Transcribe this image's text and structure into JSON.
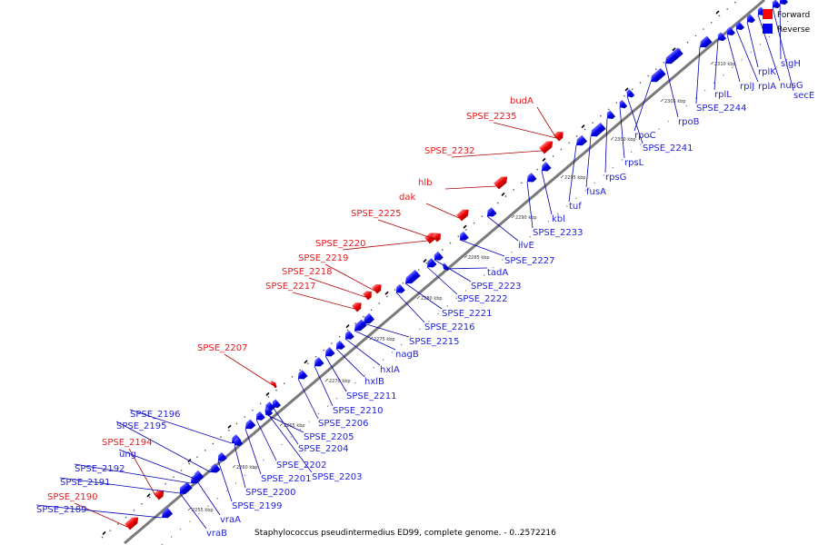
{
  "legend": {
    "forward_label": "Forward",
    "reverse_label": "Reverse",
    "forward_color": "#ff0000",
    "reverse_color": "#0000ff"
  },
  "caption": "Staphylococcus pseudintermedius ED99, complete genome. - 0..2572216",
  "ticks": [
    "2255 kbp",
    "2260 kbp",
    "2265 kbp",
    "2270 kbp",
    "2275 kbp",
    "2280 kbp",
    "2285 kbp",
    "2290 kbp",
    "2295 kbp",
    "2300 kbp",
    "2305 kbp",
    "2310 kbp"
  ],
  "forward_genes": [
    {
      "name": "SPSE_2190"
    },
    {
      "name": "SPSE_2194"
    },
    {
      "name": "SPSE_2207"
    },
    {
      "name": "SPSE_2217"
    },
    {
      "name": "SPSE_2218"
    },
    {
      "name": "SPSE_2219"
    },
    {
      "name": "SPSE_2220"
    },
    {
      "name": "SPSE_2225"
    },
    {
      "name": "dak"
    },
    {
      "name": "hlb"
    },
    {
      "name": "SPSE_2232"
    },
    {
      "name": "SPSE_2235"
    },
    {
      "name": "budA"
    }
  ],
  "reverse_genes": [
    {
      "name": "SPSE_2189"
    },
    {
      "name": "SPSE_2191"
    },
    {
      "name": "SPSE_2192"
    },
    {
      "name": "ung"
    },
    {
      "name": "SPSE_2195"
    },
    {
      "name": "SPSE_2196"
    },
    {
      "name": "vraB"
    },
    {
      "name": "vraA"
    },
    {
      "name": "SPSE_2199"
    },
    {
      "name": "SPSE_2200"
    },
    {
      "name": "SPSE_2201"
    },
    {
      "name": "SPSE_2202"
    },
    {
      "name": "SPSE_2203"
    },
    {
      "name": "SPSE_2204"
    },
    {
      "name": "SPSE_2205"
    },
    {
      "name": "SPSE_2206"
    },
    {
      "name": "SPSE_2210"
    },
    {
      "name": "SPSE_2211"
    },
    {
      "name": "hxlB"
    },
    {
      "name": "hxlA"
    },
    {
      "name": "nagB"
    },
    {
      "name": "SPSE_2215"
    },
    {
      "name": "SPSE_2216"
    },
    {
      "name": "SPSE_2221"
    },
    {
      "name": "SPSE_2222"
    },
    {
      "name": "SPSE_2223"
    },
    {
      "name": "tadA"
    },
    {
      "name": "SPSE_2227"
    },
    {
      "name": "ilvE"
    },
    {
      "name": "SPSE_2233"
    },
    {
      "name": "kbl"
    },
    {
      "name": "tuf"
    },
    {
      "name": "fusA"
    },
    {
      "name": "rpsG"
    },
    {
      "name": "rpsL"
    },
    {
      "name": "SPSE_2241"
    },
    {
      "name": "rpoC"
    },
    {
      "name": "rpoB"
    },
    {
      "name": "SPSE_2244"
    },
    {
      "name": "rplL"
    },
    {
      "name": "rplJ"
    },
    {
      "name": "rplA"
    },
    {
      "name": "rplK"
    },
    {
      "name": "nusG"
    },
    {
      "name": "secE"
    },
    {
      "name": "sigH"
    }
  ]
}
